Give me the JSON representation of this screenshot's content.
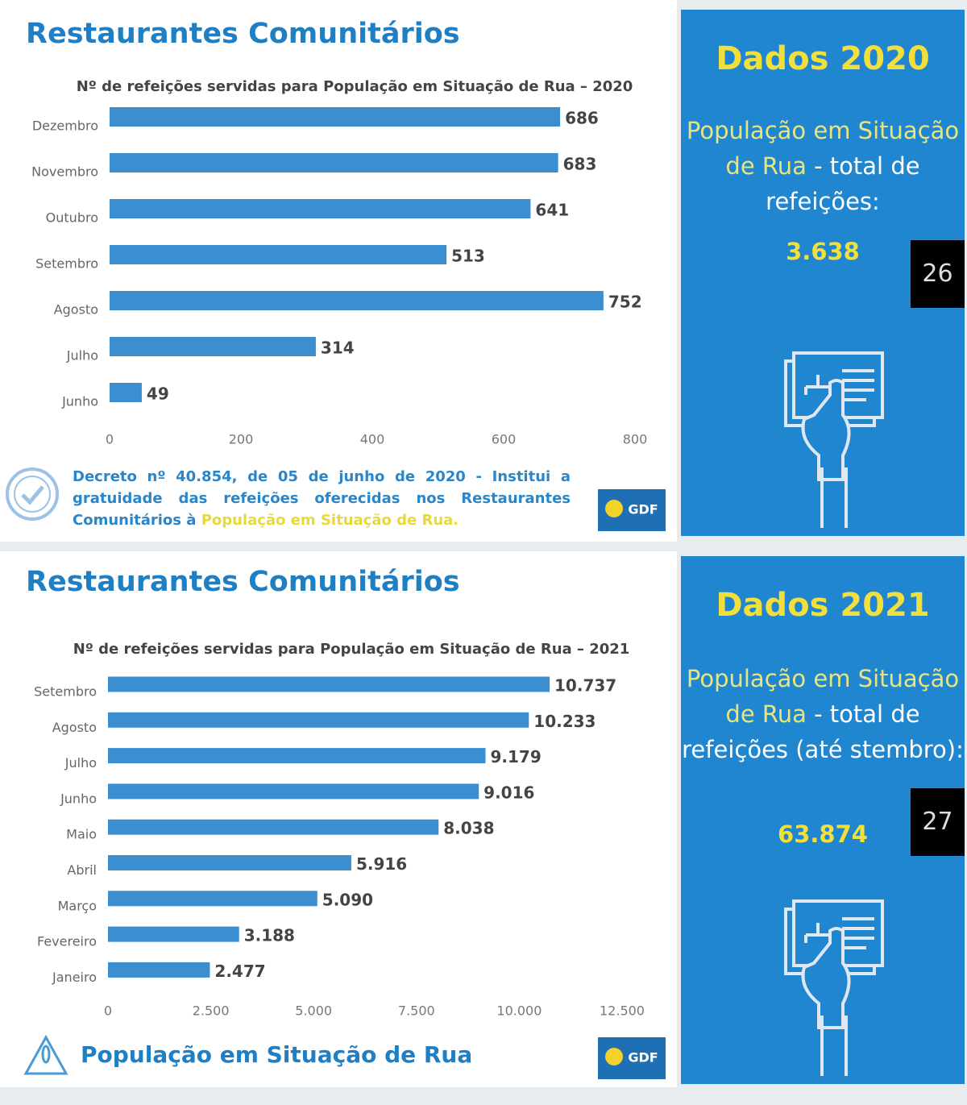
{
  "slides": [
    {
      "heading": "Restaurantes Comunitários",
      "panel_title": "Dados 2020",
      "panel_highlight": "População em Situação de Rua",
      "panel_text": " - total de refeições:",
      "panel_total": "3.638",
      "page_number": "26",
      "note": "Decreto nº 40.854, de 05 de junho de 2020 - Institui a gratuidade das refeições oferecidas nos Restaurantes Comunitários à ",
      "note_highlight": "População em Situação de Rua.",
      "logo": "GDF"
    },
    {
      "heading": "Restaurantes Comunitários",
      "panel_title": "Dados 2021",
      "panel_highlight": "População em Situação de Rua",
      "panel_text": " - total de refeições (até stembro):",
      "panel_total": "63.874",
      "page_number": "27",
      "footer": "População em Situação de Rua",
      "logo": "GDF"
    }
  ],
  "chart_data": [
    {
      "type": "bar",
      "orientation": "horizontal",
      "title": "Nº de refeições servidas para População em Situação de Rua – 2020",
      "categories": [
        "Dezembro",
        "Novembro",
        "Outubro",
        "Setembro",
        "Agosto",
        "Julho",
        "Junho"
      ],
      "values": [
        686,
        683,
        641,
        513,
        752,
        314,
        49
      ],
      "color": "#3b8fd1",
      "xlim": [
        0,
        800
      ],
      "xticks": [
        0,
        200,
        400,
        600,
        800
      ]
    },
    {
      "type": "bar",
      "orientation": "horizontal",
      "title": "Nº de refeições servidas para População em Situação de Rua – 2021",
      "categories": [
        "Setembro",
        "Agosto",
        "Julho",
        "Junho",
        "Maio",
        "Abril",
        "Março",
        "Fevereiro",
        "Janeiro"
      ],
      "values": [
        10737,
        10233,
        9179,
        9016,
        8038,
        5916,
        5090,
        3188,
        2477
      ],
      "value_labels": [
        "10.737",
        "10.233",
        "9.179",
        "9.016",
        "8.038",
        "5.916",
        "5.090",
        "3.188",
        "2.477"
      ],
      "color": "#3b8fd1",
      "xlim": [
        0,
        12500
      ],
      "xticks": [
        0,
        {
          "value": 2500,
          "label": "2.500"
        },
        {
          "value": 5000,
          "label": "5.000"
        },
        {
          "value": 7500,
          "label": "7.500"
        },
        {
          "value": 10000,
          "label": "10.000"
        },
        {
          "value": 12500,
          "label": "12.500"
        }
      ]
    }
  ]
}
